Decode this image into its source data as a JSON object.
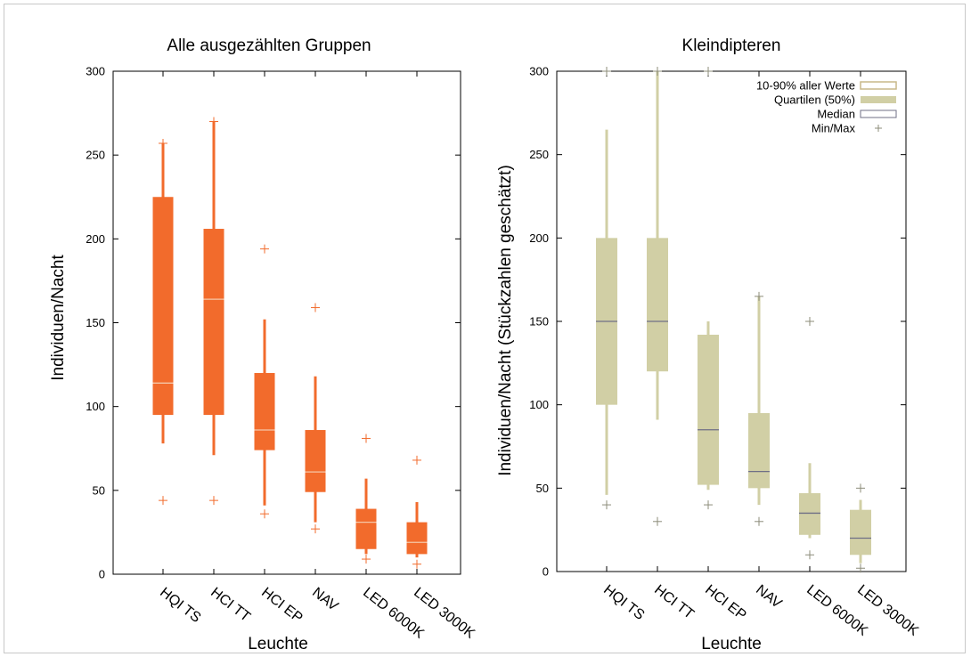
{
  "chart_data": [
    {
      "type": "boxplot",
      "title": "Alle ausgezählten Gruppen",
      "xlabel": "Leuchte",
      "ylabel": "Individuen/Nacht",
      "ylim": [
        0,
        300
      ],
      "yticks": [
        0,
        50,
        100,
        150,
        200,
        250,
        300
      ],
      "color": "#f26b2c",
      "median_color": "#f5c7a8",
      "categories": [
        "HQI TS",
        "HCI TT",
        "HCI EP",
        "NAV",
        "LED 6000K",
        "LED 3000K"
      ],
      "boxes": [
        {
          "p10": 78,
          "q1": 95,
          "median": 114,
          "q3": 225,
          "p90": 257,
          "min": 44,
          "max": 257
        },
        {
          "p10": 71,
          "q1": 95,
          "median": 164,
          "q3": 206,
          "p90": 270,
          "min": 44,
          "max": 270
        },
        {
          "p10": 41,
          "q1": 74,
          "median": 86,
          "q3": 120,
          "p90": 152,
          "min": 36,
          "max": 194
        },
        {
          "p10": 31,
          "q1": 49,
          "median": 61,
          "q3": 86,
          "p90": 118,
          "min": 27,
          "max": 159
        },
        {
          "p10": 12,
          "q1": 15,
          "median": 31,
          "q3": 39,
          "p90": 57,
          "min": 9,
          "max": 81
        },
        {
          "p10": 10,
          "q1": 12,
          "median": 19,
          "q3": 31,
          "p90": 43,
          "min": 6,
          "max": 68
        }
      ]
    },
    {
      "type": "boxplot",
      "title": "Kleindipteren",
      "xlabel": "Leuchte",
      "ylabel": "Individuen/Nacht (Stückzahlen geschätzt)",
      "ylim": [
        0,
        300
      ],
      "yticks": [
        0,
        50,
        100,
        150,
        200,
        250,
        300
      ],
      "color": "#d1cfa5",
      "median_color": "#6f6f86",
      "categories": [
        "HQI TS",
        "HCI TT",
        "HCI EP",
        "NAV",
        "LED 6000K",
        "LED 3000K"
      ],
      "boxes": [
        {
          "p10": 46,
          "q1": 100,
          "median": 150,
          "q3": 200,
          "p90": 265,
          "min": 40,
          "max": 300
        },
        {
          "p10": 91,
          "q1": 120,
          "median": 150,
          "q3": 200,
          "p90": 300,
          "min": 30,
          "max": 300
        },
        {
          "p10": 49,
          "q1": 52,
          "median": 85,
          "q3": 142,
          "p90": 150,
          "min": 40,
          "max": 300
        },
        {
          "p10": 40,
          "q1": 50,
          "median": 60,
          "q3": 95,
          "p90": 165,
          "min": 30,
          "max": 165
        },
        {
          "p10": 20,
          "q1": 22,
          "median": 35,
          "q3": 47,
          "p90": 65,
          "min": 10,
          "max": 150
        },
        {
          "p10": 5,
          "q1": 10,
          "median": 20,
          "q3": 37,
          "p90": 43,
          "min": 2,
          "max": 50
        }
      ],
      "legend": {
        "placement": "top-right",
        "entries": [
          {
            "label": "10-90% aller Werte",
            "kind": "whisker"
          },
          {
            "label": "Quartilen (50%)",
            "kind": "box"
          },
          {
            "label": "Median",
            "kind": "median"
          },
          {
            "label": "Min/Max",
            "kind": "minmax"
          }
        ]
      }
    }
  ]
}
